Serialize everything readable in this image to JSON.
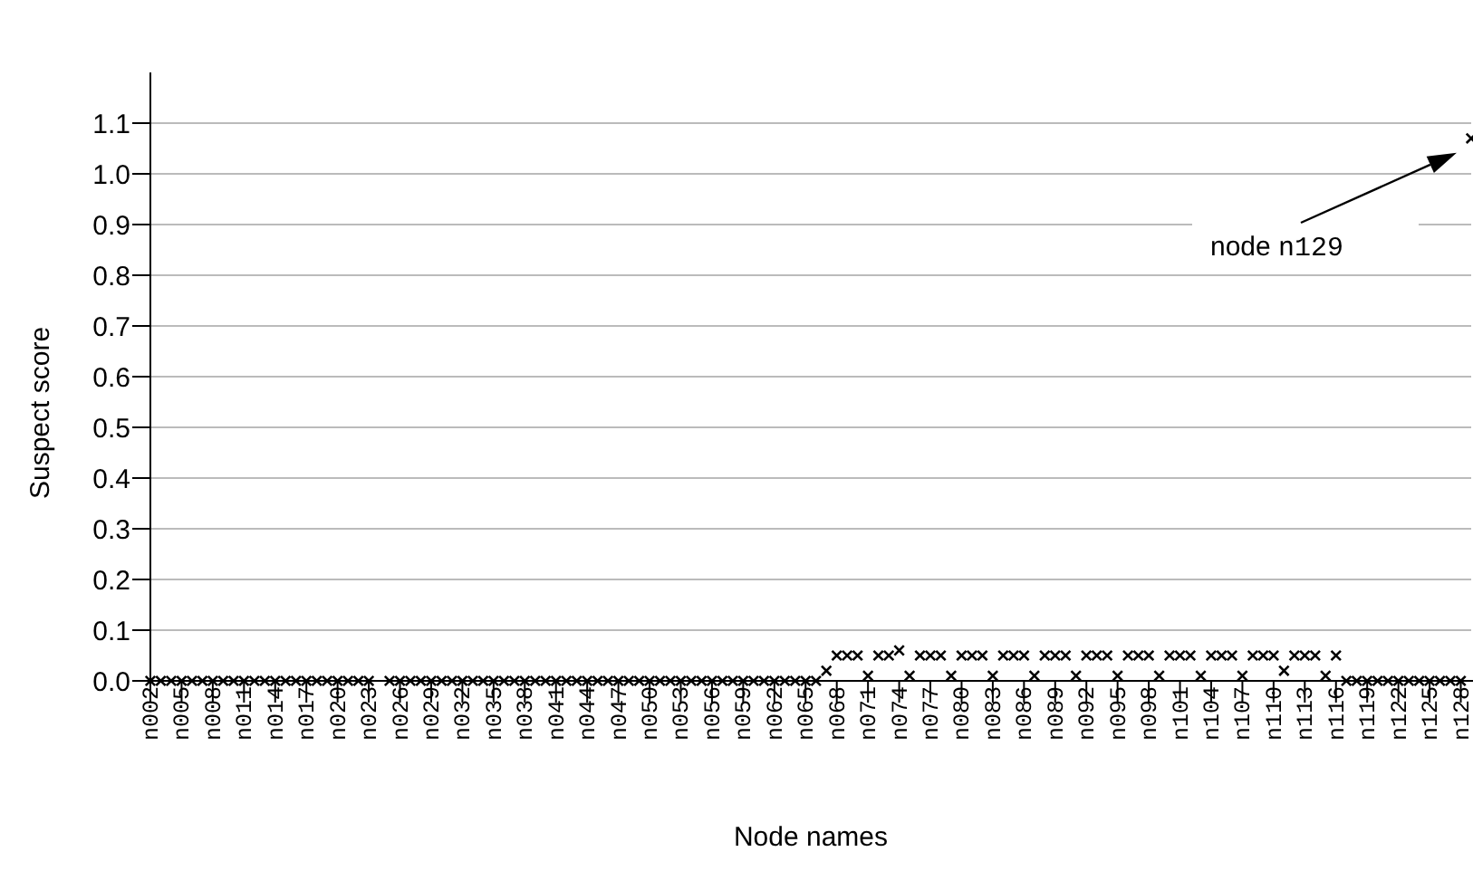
{
  "chart_data": {
    "type": "scatter",
    "xlabel": "Node names",
    "ylabel": "Suspect score",
    "categories": [
      "n002",
      null,
      null,
      "n005",
      null,
      null,
      "n008",
      null,
      null,
      "n011",
      null,
      null,
      "n014",
      null,
      null,
      "n017",
      null,
      null,
      "n020",
      null,
      null,
      "n023",
      null,
      null,
      "n026",
      null,
      null,
      "n029",
      null,
      null,
      "n032",
      null,
      null,
      "n035",
      null,
      null,
      "n038",
      null,
      null,
      "n041",
      null,
      null,
      "n044",
      null,
      null,
      "n047",
      null,
      null,
      "n050",
      null,
      null,
      "n053",
      null,
      null,
      "n056",
      null,
      null,
      "n059",
      null,
      null,
      "n062",
      null,
      null,
      "n065",
      null,
      null,
      "n068",
      null,
      null,
      "n071",
      null,
      null,
      "n074",
      null,
      null,
      "n077",
      null,
      null,
      "n080",
      null,
      null,
      "n083",
      null,
      null,
      "n086",
      null,
      null,
      "n089",
      null,
      null,
      "n092",
      null,
      null,
      "n095",
      null,
      null,
      "n098",
      null,
      null,
      "n101",
      null,
      null,
      "n104",
      null,
      null,
      "n107",
      null,
      null,
      "n110",
      null,
      null,
      "n113",
      null,
      null,
      "n116",
      null,
      null,
      "n119",
      null,
      null,
      "n122",
      null,
      null,
      "n125",
      null,
      null,
      "n128",
      null
    ],
    "values": [
      0,
      0,
      0,
      0,
      0,
      0,
      0,
      0,
      0,
      0,
      0,
      0,
      0,
      0,
      0,
      0,
      0,
      0,
      0,
      0,
      0,
      0,
      null,
      0,
      0,
      0,
      0,
      0,
      0,
      0,
      0,
      0,
      0,
      0,
      0,
      0,
      0,
      0,
      0,
      0,
      0,
      0,
      0,
      0,
      0,
      0,
      0,
      0,
      0,
      0,
      0,
      0,
      0,
      0,
      0,
      0,
      0,
      0,
      0,
      0,
      0,
      0,
      0,
      0,
      0,
      0.02,
      0.05,
      0.05,
      0.05,
      0.01,
      0.05,
      0.05,
      0.06,
      0.01,
      0.05,
      0.05,
      0.05,
      0.01,
      0.05,
      0.05,
      0.05,
      0.01,
      0.05,
      0.05,
      0.05,
      0.01,
      0.05,
      0.05,
      0.05,
      0.01,
      0.05,
      0.05,
      0.05,
      0.01,
      0.05,
      0.05,
      0.05,
      0.01,
      0.05,
      0.05,
      0.05,
      0.01,
      0.05,
      0.05,
      0.05,
      0.01,
      0.05,
      0.05,
      0.05,
      0.02,
      0.05,
      0.05,
      0.05,
      0.01,
      0.05,
      0,
      0,
      0,
      0,
      0,
      0,
      0,
      0,
      0,
      0,
      0,
      0,
      1.07
    ],
    "color": "#000000",
    "marker": "cross",
    "grid": "y",
    "ylim": [
      0,
      1.2
    ],
    "yticks": [
      {
        "value": 0,
        "label": "0.0"
      },
      {
        "value": 0.1,
        "label": "0.1"
      },
      {
        "value": 0.2,
        "label": "0.2"
      },
      {
        "value": 0.3,
        "label": "0.3"
      },
      {
        "value": 0.4,
        "label": "0.4"
      },
      {
        "value": 0.5,
        "label": "0.5"
      },
      {
        "value": 0.6,
        "label": "0.6"
      },
      {
        "value": 0.7,
        "label": "0.7"
      },
      {
        "value": 0.8,
        "label": "0.8"
      },
      {
        "value": 0.9,
        "label": "0.9"
      },
      {
        "value": 1.0,
        "label": "1.0"
      },
      {
        "value": 1.1,
        "label": "1.1"
      }
    ],
    "annotations": [
      "node n129"
    ]
  }
}
